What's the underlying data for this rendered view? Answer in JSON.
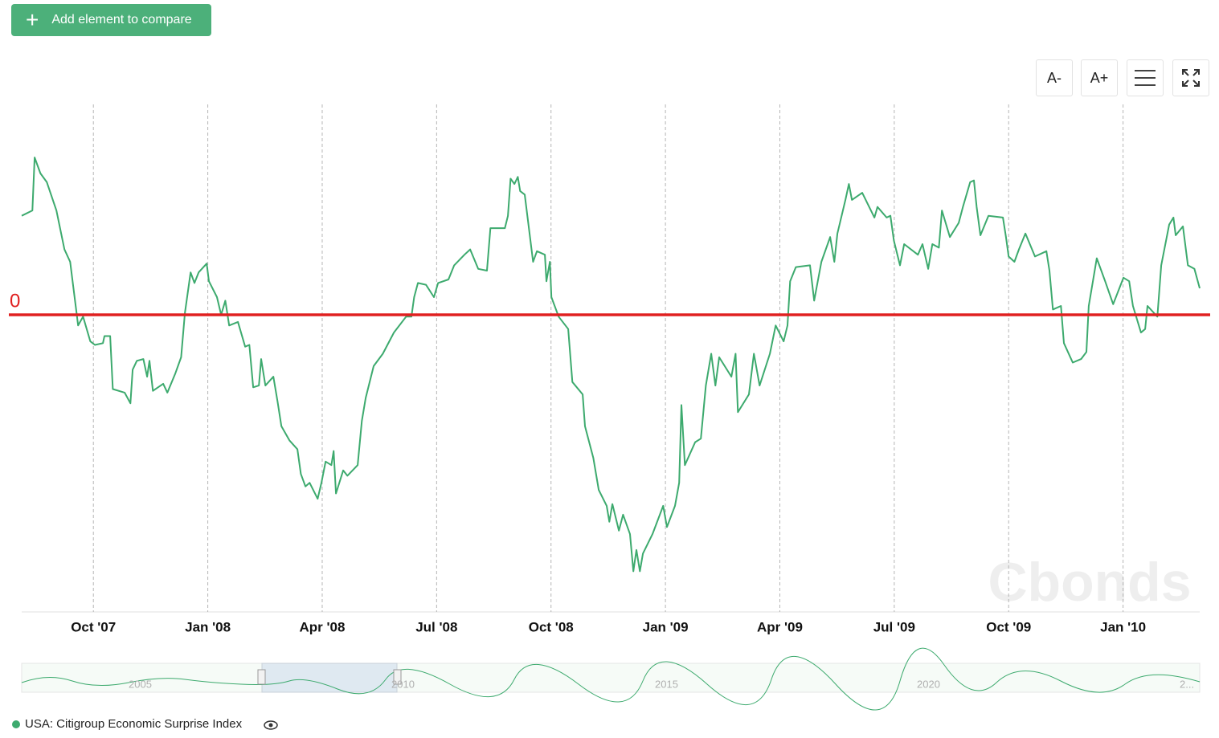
{
  "toolbar": {
    "add_button": "Add element to compare",
    "font_smaller": "A-",
    "font_larger": "A+"
  },
  "watermark": "Cbonds",
  "navigator": {
    "labels": [
      "2005",
      "2010",
      "2015",
      "2020",
      "2..."
    ]
  },
  "chart_data": {
    "type": "line",
    "x": [
      7.12,
      7.4,
      7.46,
      7.61,
      7.78,
      8.03,
      8.24,
      8.39,
      8.56,
      8.6,
      8.73,
      8.92,
      9.04,
      9.25,
      9.29,
      9.44,
      9.51,
      9.82,
      9.97,
      10.03,
      10.14,
      10.31,
      10.41,
      10.47,
      10.56,
      10.83,
      10.94,
      11.15,
      11.3,
      11.4,
      11.55,
      11.65,
      11.76,
      11.97,
      12.03,
      12.24,
      12.35,
      12.46,
      12.56,
      12.79,
      12.98,
      13.09,
      13.19,
      13.34,
      13.4,
      13.51,
      13.72,
      13.83,
      13.93,
      14.14,
      14.35,
      14.44,
      14.56,
      14.67,
      14.88,
      14.98,
      15.09,
      15.24,
      15.3,
      15.36,
      15.55,
      15.66,
      15.93,
      16.04,
      16.14,
      16.35,
      16.59,
      16.88,
      17.2,
      17.34,
      17.41,
      17.51,
      17.72,
      17.93,
      18.04,
      18.31,
      18.46,
      18.73,
      18.88,
      19.09,
      19.32,
      19.41,
      19.79,
      19.87,
      19.94,
      20.04,
      20.13,
      20.19,
      20.31,
      20.42,
      20.53,
      20.63,
      20.84,
      20.88,
      20.97,
      21.01,
      21.2,
      21.45,
      21.56,
      21.83,
      21.89,
      22.11,
      22.25,
      22.46,
      22.53,
      22.61,
      22.78,
      22.89,
      23.07,
      23.16,
      23.24,
      23.33,
      23.41,
      23.66,
      23.94,
      24.04,
      24.25,
      24.36,
      24.42,
      24.51,
      24.78,
      24.93,
      25.06,
      25.2,
      25.31,
      25.41,
      25.73,
      25.84,
      25.9,
      26.19,
      26.32,
      26.47,
      26.74,
      26.89,
      27.1,
      27.2,
      27.27,
      27.42,
      27.79,
      27.9,
      28.09,
      28.32,
      28.43,
      28.51,
      28.72,
      28.81,
      28.89,
      29.16,
      29.48,
      29.56,
      29.8,
      29.9,
      29.99,
      30.15,
      30.26,
      30.62,
      30.74,
      30.89,
      31.0,
      31.17,
      31.25,
      31.46,
      31.69,
      31.8,
      31.99,
      32.09,
      32.16,
      32.26,
      32.47,
      32.85,
      32.93,
      33.0,
      33.15,
      33.27,
      33.44,
      33.69,
      33.99,
      34.07,
      34.16,
      34.37,
      34.45,
      34.68,
      34.9,
      35.04,
      35.1,
      35.31,
      35.53,
      35.74,
      36.01,
      36.16,
      36.26,
      36.47,
      36.58,
      36.64,
      36.9,
      37.0,
      37.21,
      37.32,
      37.38,
      37.57,
      37.7,
      37.87,
      38.01
    ],
    "series": [
      {
        "name": "USA: Citigroup Economic Surprise Index",
        "color": "#3daa6e",
        "values": [
          56,
          59,
          89,
          80,
          75,
          59,
          37,
          30,
          1,
          -6,
          -1,
          -15,
          -17,
          -16,
          -12,
          -12,
          -42,
          -44,
          -50,
          -31,
          -26,
          -25,
          -35,
          -26,
          -43,
          -39,
          -44,
          -33,
          -24,
          1,
          24,
          18,
          24,
          29,
          19,
          10,
          0,
          8,
          -6,
          -4,
          -18,
          -17,
          -41,
          -40,
          -25,
          -40,
          -35,
          -49,
          -63,
          -71,
          -76,
          -90,
          -97,
          -95,
          -104,
          -95,
          -83,
          -85,
          -77,
          -101,
          -88,
          -91,
          -85,
          -60,
          -47,
          -29,
          -22,
          -10,
          -1,
          -1,
          10,
          18,
          17,
          10,
          18,
          20,
          28,
          34,
          37,
          26,
          25,
          49,
          49,
          56,
          77,
          74,
          78,
          70,
          68,
          49,
          30,
          36,
          34,
          19,
          30,
          10,
          -1,
          -8,
          -38,
          -45,
          -63,
          -81,
          -99,
          -108,
          -117,
          -107,
          -122,
          -113,
          -124,
          -145,
          -133,
          -145,
          -135,
          -124,
          -108,
          -120,
          -108,
          -95,
          -51,
          -85,
          -72,
          -70,
          -40,
          -22,
          -40,
          -24,
          -35,
          -22,
          -55,
          -45,
          -22,
          -40,
          -22,
          -6,
          -15,
          -6,
          19,
          27,
          28,
          8,
          30,
          44,
          30,
          46,
          65,
          74,
          65,
          69,
          55,
          61,
          55,
          56,
          42,
          28,
          40,
          34,
          40,
          26,
          40,
          38,
          59,
          44,
          52,
          61,
          75,
          76,
          61,
          45,
          56,
          55,
          44,
          33,
          30,
          37,
          46,
          33,
          36,
          25,
          3,
          5,
          -16,
          -27,
          -25,
          -21,
          5,
          32,
          19,
          6,
          21,
          19,
          5,
          -10,
          -8,
          5,
          -1,
          28,
          51,
          55,
          45,
          50,
          28,
          26,
          15
        ]
      }
    ],
    "xlim": [
      7.12,
      38.01
    ],
    "xticks": [
      {
        "value": 9,
        "label": "Oct '07"
      },
      {
        "value": 12,
        "label": "Jan '08"
      },
      {
        "value": 15,
        "label": "Apr '08"
      },
      {
        "value": 18,
        "label": "Jul '08"
      },
      {
        "value": 21,
        "label": "Oct '08"
      },
      {
        "value": 24,
        "label": "Jan '09"
      },
      {
        "value": 27,
        "label": "Apr '09"
      },
      {
        "value": 30,
        "label": "Jul '09"
      },
      {
        "value": 33,
        "label": "Oct '09"
      },
      {
        "value": 36,
        "label": "Jan '10"
      }
    ],
    "ylim": [
      -168,
      119
    ],
    "yticks": [
      0
    ],
    "zero_line_color": "#e02020",
    "grid": true
  }
}
